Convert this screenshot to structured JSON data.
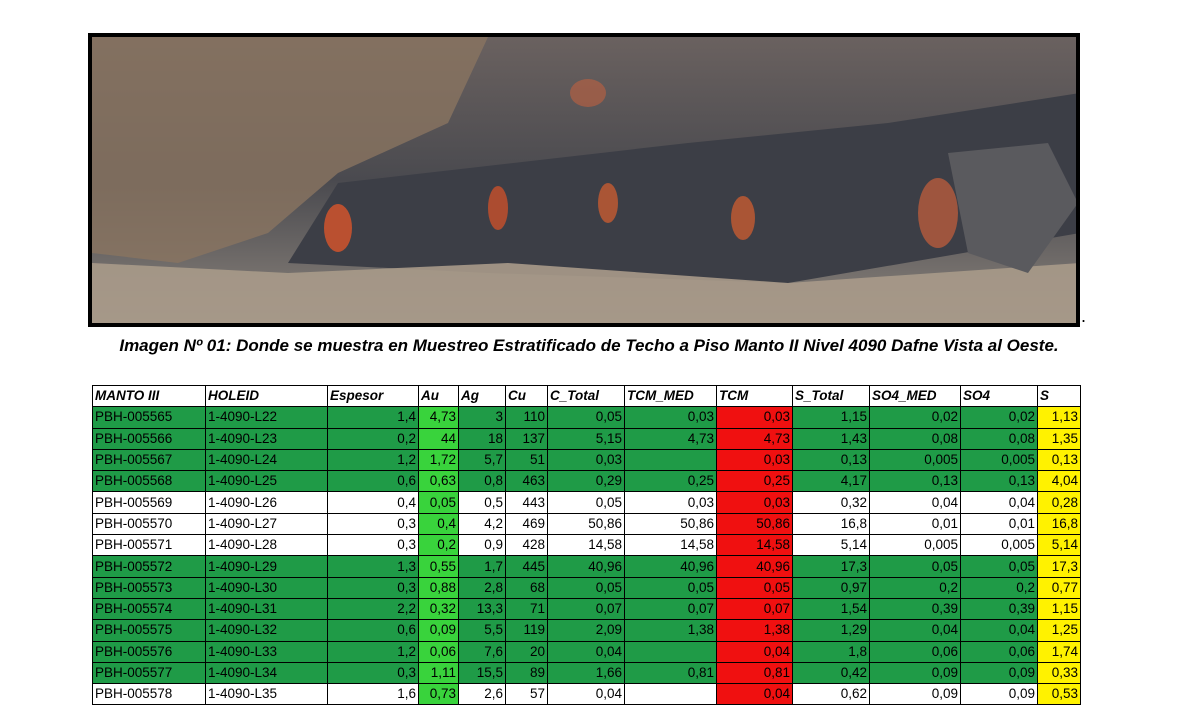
{
  "caption": "Imagen Nº 01: Donde se muestra en Muestreo Estratificado de Techo a Piso Manto II Nivel 4090 Dafne Vista al Oeste.",
  "table": {
    "header": [
      "MANTO III",
      "HOLEID",
      "Espesor",
      "Au",
      "Ag",
      "Cu",
      "C_Total",
      "TCM_MED",
      "TCM",
      "S_Total",
      "SO4_MED",
      "SO4",
      "S"
    ],
    "rows": [
      [
        "PBH-005565",
        "1-4090-L22",
        "1,4",
        "4,73",
        "3",
        "110",
        "0,05",
        "0,03",
        "0,03",
        "1,15",
        "0,02",
        "0,02",
        "1,13"
      ],
      [
        "PBH-005566",
        "1-4090-L23",
        "0,2",
        "44",
        "18",
        "137",
        "5,15",
        "4,73",
        "4,73",
        "1,43",
        "0,08",
        "0,08",
        "1,35"
      ],
      [
        "PBH-005567",
        "1-4090-L24",
        "1,2",
        "1,72",
        "5,7",
        "51",
        "0,03",
        null,
        "0,03",
        "0,13",
        "0,005",
        "0,005",
        "0,13"
      ],
      [
        "PBH-005568",
        "1-4090-L25",
        "0,6",
        "0,63",
        "0,8",
        "463",
        "0,29",
        "0,25",
        "0,25",
        "4,17",
        "0,13",
        "0,13",
        "4,04"
      ],
      [
        "PBH-005569",
        "1-4090-L26",
        "0,4",
        "0,05",
        "0,5",
        "443",
        "0,05",
        "0,03",
        "0,03",
        "0,32",
        "0,04",
        "0,04",
        "0,28"
      ],
      [
        "PBH-005570",
        "1-4090-L27",
        "0,3",
        "0,4",
        "4,2",
        "469",
        "50,86",
        "50,86",
        "50,86",
        "16,8",
        "0,01",
        "0,01",
        "16,8"
      ],
      [
        "PBH-005571",
        "1-4090-L28",
        "0,3",
        "0,2",
        "0,9",
        "428",
        "14,58",
        "14,58",
        "14,58",
        "5,14",
        "0,005",
        "0,005",
        "5,14"
      ],
      [
        "PBH-005572",
        "1-4090-L29",
        "1,3",
        "0,55",
        "1,7",
        "445",
        "40,96",
        "40,96",
        "40,96",
        "17,3",
        "0,05",
        "0,05",
        "17,3"
      ],
      [
        "PBH-005573",
        "1-4090-L30",
        "0,3",
        "0,88",
        "2,8",
        "68",
        "0,05",
        "0,05",
        "0,05",
        "0,97",
        "0,2",
        "0,2",
        "0,77"
      ],
      [
        "PBH-005574",
        "1-4090-L31",
        "2,2",
        "0,32",
        "13,3",
        "71",
        "0,07",
        "0,07",
        "0,07",
        "1,54",
        "0,39",
        "0,39",
        "1,15"
      ],
      [
        "PBH-005575",
        "1-4090-L32",
        "0,6",
        "0,09",
        "5,5",
        "119",
        "2,09",
        "1,38",
        "1,38",
        "1,29",
        "0,04",
        "0,04",
        "1,25"
      ],
      [
        "PBH-005576",
        "1-4090-L33",
        "1,2",
        "0,06",
        "7,6",
        "20",
        "0,04",
        null,
        "0,04",
        "1,8",
        "0,06",
        "0,06",
        "1,74"
      ],
      [
        "PBH-005577",
        "1-4090-L34",
        "0,3",
        "1,11",
        "15,5",
        "89",
        "1,66",
        "0,81",
        "0,81",
        "0,42",
        "0,09",
        "0,09",
        "0,33"
      ],
      [
        "PBH-005578",
        "1-4090-L35",
        "1,6",
        "0,73",
        "2,6",
        "57",
        "0,04",
        null,
        "0,04",
        "0,62",
        "0,09",
        "0,09",
        "0,53"
      ]
    ]
  }
}
